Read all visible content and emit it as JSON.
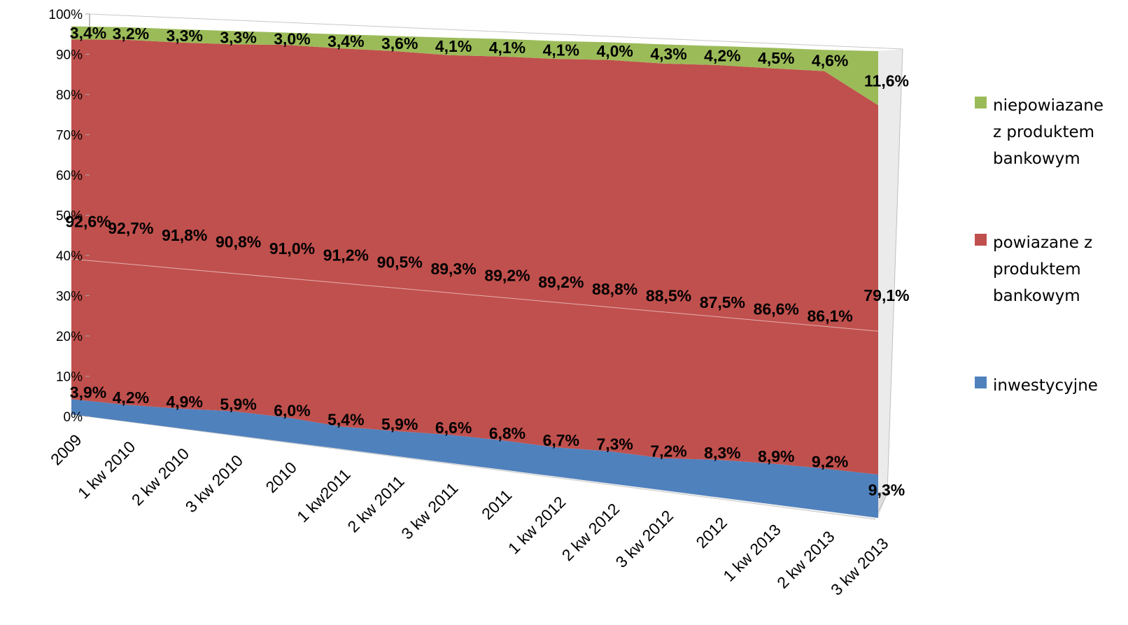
{
  "chart_data": {
    "type": "area",
    "stacked": true,
    "percent": true,
    "three_d": true,
    "categories": [
      "2009",
      "1 kw 2010",
      "2 kw 2010",
      "3 kw 2010",
      "2010",
      "1 kw2011",
      "2 kw 2011",
      "3 kw 2011",
      "2011",
      "1 kw 2012",
      "2 kw 2012",
      "3 kw 2012",
      "2012",
      "1 kw 2013",
      "2 kw 2013",
      "3 kw 2013"
    ],
    "series": [
      {
        "name": "inwestycyjne",
        "color": "#4f81bd",
        "values": [
          3.9,
          4.2,
          4.9,
          5.9,
          6.0,
          5.4,
          5.9,
          6.6,
          6.8,
          6.7,
          7.3,
          7.2,
          8.3,
          8.9,
          9.2,
          9.3
        ],
        "labels": [
          "3,9%",
          "4,2%",
          "4,9%",
          "5,9%",
          "6,0%",
          "5,4%",
          "5,9%",
          "6,6%",
          "6,8%",
          "6,7%",
          "7,3%",
          "7,2%",
          "8,3%",
          "8,9%",
          "9,2%",
          "9,3%"
        ]
      },
      {
        "name": "powiazane z produktem bankowym",
        "color": "#c0504d",
        "values": [
          92.6,
          92.7,
          91.8,
          90.8,
          91.0,
          91.2,
          90.5,
          89.3,
          89.2,
          89.2,
          88.8,
          88.5,
          87.5,
          86.6,
          86.1,
          79.1
        ],
        "labels": [
          "92,6%",
          "92,7%",
          "91,8%",
          "90,8%",
          "91,0%",
          "91,2%",
          "90,5%",
          "89,3%",
          "89,2%",
          "89,2%",
          "88,8%",
          "88,5%",
          "87,5%",
          "86,6%",
          "86,1%",
          "79,1%"
        ]
      },
      {
        "name": "niepowiazane z produktem bankowym",
        "color": "#9bbb59",
        "values": [
          3.4,
          3.2,
          3.3,
          3.3,
          3.0,
          3.4,
          3.6,
          4.1,
          4.1,
          4.1,
          4.0,
          4.3,
          4.2,
          4.5,
          4.6,
          11.6
        ],
        "labels": [
          "3,4%",
          "3,2%",
          "3,3%",
          "3,3%",
          "3,0%",
          "3,4%",
          "3,6%",
          "4,1%",
          "4,1%",
          "4,1%",
          "4,0%",
          "4,3%",
          "4,2%",
          "4,5%",
          "4,6%",
          "11,6%"
        ]
      }
    ],
    "y_ticks": [
      "0%",
      "10%",
      "20%",
      "30%",
      "40%",
      "50%",
      "60%",
      "70%",
      "80%",
      "90%",
      "100%"
    ],
    "ylim": [
      0,
      100
    ],
    "grid": true,
    "legend_position": "right"
  },
  "legend": [
    {
      "lines": [
        "niepowiazane",
        "z produktem",
        "bankowym"
      ],
      "color": "#9bbb59"
    },
    {
      "lines": [
        "powiazane z",
        "produktem",
        "bankowym"
      ],
      "color": "#c0504d"
    },
    {
      "lines": [
        "inwestycyjne"
      ],
      "color": "#4f81bd"
    }
  ]
}
